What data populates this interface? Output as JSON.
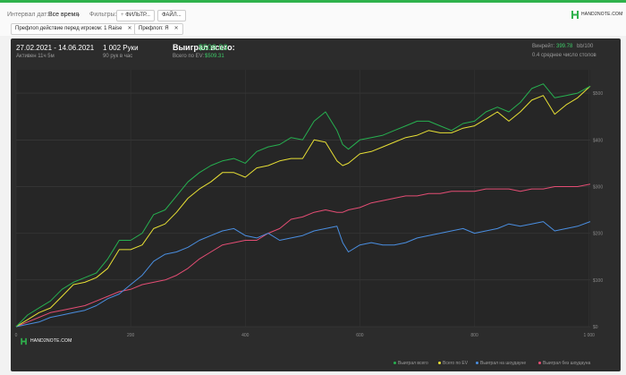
{
  "toolbar": {
    "date_interval_label": "Интервал дат:",
    "date_interval_value": "Все время",
    "filters_label": "Фильтры:",
    "filter_button_label": "ФИЛЬТР...",
    "file_button_label": "ФАЙЛ...",
    "chips": [
      {
        "label": "Префлоп действие перед игроком: 1 Raise"
      },
      {
        "label": "Префлоп: Я"
      }
    ],
    "logo_text": "HAND2NOTE.COM",
    "colors": {
      "accent": "#2fb24c"
    }
  },
  "summary": {
    "date_range": "27.02.2021 - 14.06.2021",
    "active_time": "Активен 11ч 5м",
    "hands": "1 002 Руки",
    "hands_per_hour": "90 рук в час",
    "won_total_label": "Выиграл всего:",
    "won_total_value": "$509.93",
    "ev_label": "Всего по EV:",
    "ev_value": "$509.31",
    "winrate_label": "Винрейт:",
    "winrate_value": "399.78",
    "winrate_count": "bb/100",
    "avg_tables": "0.4 среднее число столов"
  },
  "watermark": "HAND2NOTE.COM",
  "chart_data": {
    "type": "line",
    "xlim": [
      0,
      1002
    ],
    "ylim": [
      0,
      550
    ],
    "x_ticks": [
      0,
      200,
      400,
      600,
      800,
      1000
    ],
    "x_tick_labels": [
      "0",
      "200",
      "400",
      "600",
      "800",
      "1 000"
    ],
    "y_ticks": [
      0,
      100,
      200,
      300,
      400,
      500
    ],
    "y_tick_labels": [
      "$0",
      "$100",
      "$200",
      "$300",
      "$400",
      "$500"
    ],
    "grid": true,
    "legend_position": "bottom-right",
    "x": [
      0,
      20,
      40,
      60,
      80,
      100,
      120,
      140,
      160,
      180,
      200,
      220,
      240,
      260,
      280,
      300,
      320,
      340,
      360,
      380,
      400,
      420,
      440,
      460,
      480,
      500,
      520,
      540,
      560,
      570,
      580,
      600,
      620,
      640,
      660,
      680,
      700,
      720,
      740,
      760,
      780,
      800,
      820,
      840,
      860,
      880,
      900,
      920,
      940,
      960,
      980,
      1002
    ],
    "series": [
      {
        "name": "Выиграл всего",
        "color": "#26b050",
        "values": [
          0,
          25,
          40,
          55,
          80,
          95,
          105,
          115,
          145,
          185,
          185,
          200,
          240,
          250,
          280,
          310,
          330,
          345,
          355,
          360,
          350,
          375,
          385,
          390,
          405,
          400,
          440,
          460,
          420,
          390,
          380,
          400,
          405,
          410,
          420,
          430,
          440,
          440,
          430,
          420,
          435,
          440,
          460,
          470,
          460,
          480,
          510,
          520,
          490,
          495,
          500,
          515
        ]
      },
      {
        "name": "Всего по EV",
        "color": "#e8e035",
        "values": [
          0,
          15,
          30,
          40,
          65,
          90,
          95,
          105,
          125,
          165,
          165,
          175,
          210,
          220,
          245,
          275,
          295,
          310,
          330,
          330,
          320,
          340,
          345,
          355,
          360,
          360,
          400,
          395,
          355,
          345,
          350,
          370,
          375,
          385,
          395,
          405,
          410,
          420,
          415,
          415,
          425,
          430,
          445,
          460,
          440,
          460,
          485,
          495,
          455,
          475,
          490,
          515
        ]
      },
      {
        "name": "Выиграл на шоудауне",
        "color": "#4a8ee0",
        "values": [
          0,
          5,
          10,
          20,
          25,
          30,
          35,
          45,
          60,
          70,
          90,
          110,
          140,
          155,
          160,
          170,
          185,
          195,
          205,
          210,
          195,
          190,
          200,
          185,
          190,
          195,
          205,
          210,
          215,
          180,
          160,
          175,
          180,
          175,
          175,
          180,
          190,
          195,
          200,
          205,
          210,
          200,
          205,
          210,
          220,
          215,
          220,
          225,
          205,
          210,
          215,
          225
        ]
      },
      {
        "name": "Выиграл без шоудауна",
        "color": "#e44d74",
        "values": [
          0,
          10,
          20,
          30,
          35,
          40,
          45,
          55,
          65,
          75,
          80,
          90,
          95,
          100,
          110,
          125,
          145,
          160,
          175,
          180,
          185,
          185,
          200,
          210,
          230,
          235,
          245,
          250,
          245,
          245,
          250,
          255,
          265,
          270,
          275,
          280,
          280,
          285,
          285,
          290,
          290,
          290,
          295,
          295,
          295,
          290,
          295,
          295,
          300,
          300,
          300,
          305
        ]
      }
    ]
  }
}
